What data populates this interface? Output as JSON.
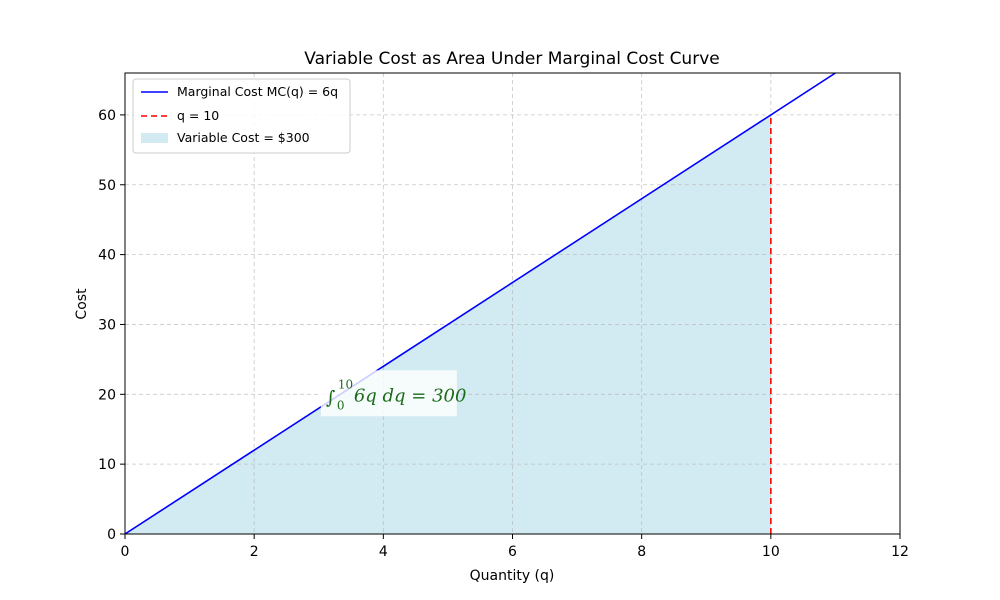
{
  "chart_data": {
    "type": "line",
    "title": "Variable Cost as Area Under Marginal Cost Curve",
    "xlabel": "Quantity (q)",
    "ylabel": "Cost",
    "xlim": [
      0,
      12
    ],
    "ylim": [
      0,
      66
    ],
    "xticks": [
      0,
      2,
      4,
      6,
      8,
      10,
      12
    ],
    "yticks": [
      0,
      10,
      20,
      30,
      40,
      50,
      60
    ],
    "grid": true,
    "legend_position": "top-left",
    "series": [
      {
        "name": "Marginal Cost MC(q) = 6q",
        "kind": "line",
        "color": "#0000ff",
        "x": [
          0,
          11
        ],
        "y": [
          0,
          66
        ]
      },
      {
        "name": "q = 10",
        "kind": "vline-dashed",
        "color": "#ff0000",
        "x": [
          10,
          10
        ],
        "y": [
          0,
          60
        ]
      },
      {
        "name": "Variable Cost = $300",
        "kind": "area",
        "color": "#add8e6",
        "x": [
          0,
          10
        ],
        "y": [
          0,
          60
        ]
      }
    ],
    "annotation": {
      "text": "6q dq = 300",
      "integral_upper": "10",
      "integral_lower": "0",
      "x": 5.2,
      "y": 20
    }
  }
}
